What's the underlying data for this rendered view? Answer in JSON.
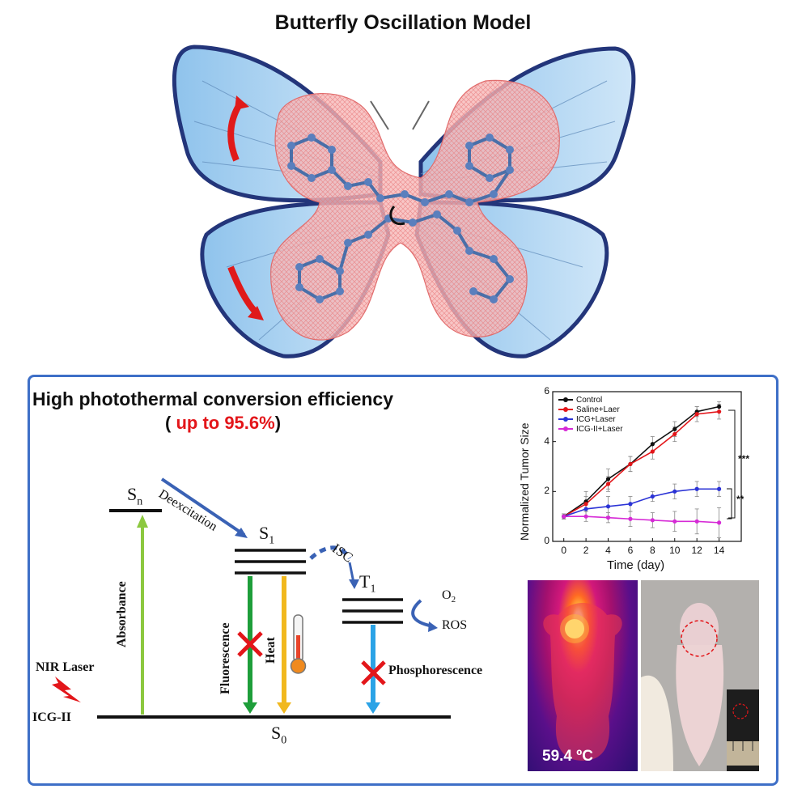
{
  "title": "Butterfly Oscillation Model",
  "panel": {
    "heading": "High photothermal conversion efficiency",
    "subheading_open": "( ",
    "subheading_value": "up to 95.6%",
    "subheading_close": ")"
  },
  "jablonski": {
    "sn": "S",
    "sn_sub": "n",
    "s1": "S",
    "s1_sub": "1",
    "t1": "T",
    "t1_sub": "1",
    "s0": "S",
    "s0_sub": "0",
    "deexcitation": "Deexcitation",
    "isc": "ISC",
    "absorbance": "Absorbance",
    "fluorescence": "Fluorescence",
    "heat": "Heat",
    "phosphorescence": "Phosphorescence",
    "o2": "O",
    "o2_sub": "2",
    "ros": "ROS",
    "nir_laser": "NIR Laser",
    "icg": "ICG-II"
  },
  "thermal": {
    "temperature": "59.4 ºC"
  },
  "chart_data": {
    "type": "line",
    "x": [
      0,
      2,
      4,
      6,
      8,
      10,
      12,
      14
    ],
    "xlabel": "Time (day)",
    "ylabel": "Normalized Tumor Size",
    "xlim": [
      -1,
      16
    ],
    "ylim": [
      0,
      6
    ],
    "xticks": [
      "0",
      "2",
      "4",
      "6",
      "8",
      "10",
      "12",
      "14"
    ],
    "yticks": [
      "0",
      "2",
      "4",
      "6"
    ],
    "series": [
      {
        "name": "Control",
        "color": "#111111",
        "values": [
          1.0,
          1.6,
          2.5,
          3.1,
          3.9,
          4.5,
          5.2,
          5.4
        ],
        "err": [
          0.1,
          0.4,
          0.4,
          0.3,
          0.3,
          0.3,
          0.2,
          0.2
        ]
      },
      {
        "name": "Saline+Laer",
        "color": "#e3161a",
        "values": [
          1.0,
          1.5,
          2.3,
          3.1,
          3.6,
          4.3,
          5.1,
          5.2
        ],
        "err": [
          0.1,
          0.3,
          0.3,
          0.3,
          0.3,
          0.3,
          0.3,
          0.3
        ]
      },
      {
        "name": "ICG+Laser",
        "color": "#2b33d6",
        "values": [
          1.0,
          1.3,
          1.4,
          1.5,
          1.8,
          2.0,
          2.1,
          2.1
        ],
        "err": [
          0.1,
          0.3,
          0.4,
          0.3,
          0.2,
          0.3,
          0.3,
          0.3
        ]
      },
      {
        "name": "ICG-II+Laser",
        "color": "#d62ad6",
        "values": [
          1.0,
          1.0,
          0.95,
          0.9,
          0.85,
          0.8,
          0.8,
          0.75
        ],
        "err": [
          0.1,
          0.2,
          0.2,
          0.3,
          0.3,
          0.4,
          0.5,
          0.6
        ]
      }
    ],
    "annotations": [
      "***",
      "**"
    ],
    "legend": "top-left"
  }
}
